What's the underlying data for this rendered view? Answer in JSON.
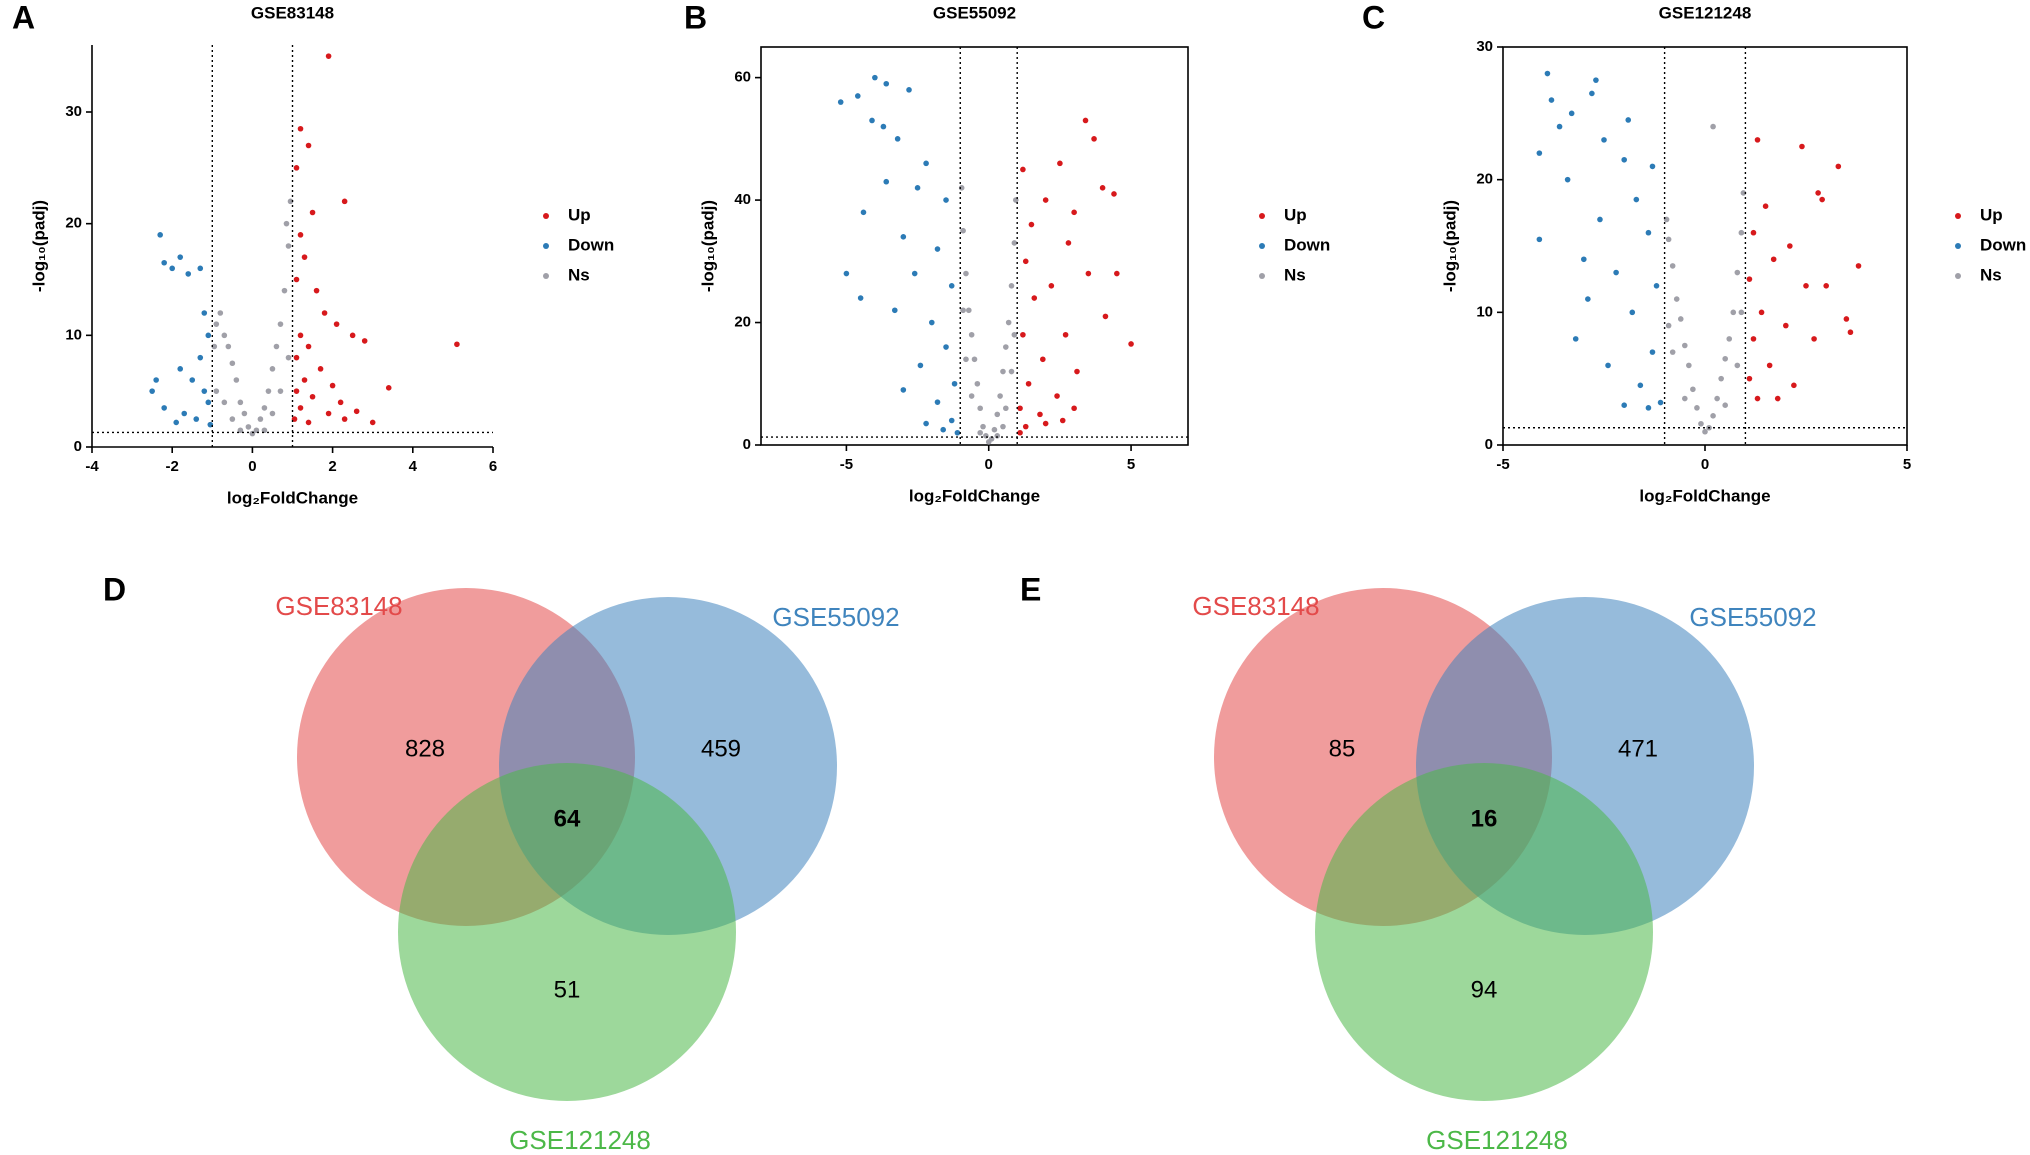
{
  "chart_data": [
    {
      "type": "scatter",
      "panel": "A",
      "title": "GSE83148",
      "xlabel": "log₂FoldChange",
      "ylabel": "-log₁₀(padj)",
      "xlim": [
        -4,
        6
      ],
      "xticks": [
        -4,
        -2,
        0,
        2,
        4,
        6
      ],
      "ylim": [
        0,
        36
      ],
      "yticks": [
        0,
        10,
        20,
        30
      ],
      "frame": false,
      "thresholds": {
        "x": [
          -1,
          1
        ],
        "y": 1.3
      },
      "series": [
        {
          "name": "Up",
          "color": "#d7191c",
          "x": [
            1.9,
            1.2,
            1.4,
            1.1,
            2.3,
            1.5,
            1.2,
            1.3,
            1.1,
            1.6,
            1.8,
            2.1,
            1.2,
            1.4,
            2.5,
            5.1,
            2.8,
            1.1,
            1.7,
            1.3,
            2.0,
            1.1,
            1.5,
            2.2,
            3.4,
            1.2,
            1.9,
            2.6,
            1.05,
            1.4,
            2.3,
            3.0
          ],
          "values": [
            35,
            28.5,
            27,
            25,
            22,
            21,
            19,
            17,
            15,
            14,
            12,
            11,
            10,
            9,
            10,
            9.2,
            9.5,
            8,
            7,
            6,
            5.5,
            5,
            4.5,
            4,
            5.3,
            3.5,
            3,
            3.2,
            2.5,
            2.2,
            2.5,
            2.2
          ]
        },
        {
          "name": "Down",
          "color": "#2c7bb6",
          "x": [
            -2.3,
            -2.2,
            -2.0,
            -1.8,
            -1.6,
            -1.3,
            -1.2,
            -1.1,
            -2.4,
            -1.8,
            -1.5,
            -1.3,
            -1.2,
            -2.2,
            -1.7,
            -1.4,
            -1.1,
            -2.5,
            -1.9,
            -1.05
          ],
          "values": [
            19,
            16.5,
            16,
            17,
            15.5,
            16,
            12,
            10,
            6,
            7,
            6,
            8,
            5,
            3.5,
            3,
            2.5,
            4,
            5,
            2.2,
            2.0
          ]
        },
        {
          "name": "Ns",
          "color": "#a0a0a8",
          "x": [
            0,
            0.1,
            -0.1,
            0.2,
            -0.2,
            0.3,
            -0.3,
            0.4,
            -0.4,
            0.5,
            -0.5,
            0.6,
            -0.6,
            0.7,
            -0.7,
            0.8,
            -0.8,
            0.9,
            -0.9,
            0.95,
            0.85,
            -0.95,
            0.7,
            -0.7,
            0.5,
            -0.5,
            0.9,
            -0.9,
            0.3,
            -0.3
          ],
          "values": [
            1.2,
            1.5,
            1.8,
            2.5,
            3,
            3.5,
            4,
            5,
            6,
            7,
            7.5,
            9,
            9,
            11,
            10,
            14,
            12,
            18,
            11,
            22,
            20,
            9,
            5,
            4,
            3,
            2.5,
            8,
            5,
            1.5,
            1.5
          ]
        }
      ]
    },
    {
      "type": "scatter",
      "panel": "B",
      "title": "GSE55092",
      "xlabel": "log₂FoldChange",
      "ylabel": "-log₁₀(padj)",
      "xlim": [
        -8,
        7
      ],
      "xticks": [
        -5,
        0,
        5
      ],
      "ylim": [
        0,
        65
      ],
      "yticks": [
        0,
        20,
        40,
        60
      ],
      "frame": true,
      "thresholds": {
        "x": [
          -1,
          1
        ],
        "y": 1.3
      },
      "series": [
        {
          "name": "Up",
          "color": "#d7191c",
          "x": [
            1.2,
            3.4,
            3.7,
            2.5,
            4.0,
            4.4,
            3.0,
            1.5,
            2.0,
            2.8,
            1.3,
            3.5,
            4.5,
            2.2,
            1.6,
            4.1,
            5.0,
            2.7,
            1.2,
            1.9,
            3.1,
            1.4,
            2.4,
            1.1,
            1.8,
            3.0,
            1.3,
            2.0,
            1.1,
            2.6
          ],
          "values": [
            45,
            53,
            50,
            46,
            42,
            41,
            38,
            36,
            40,
            33,
            30,
            28,
            28,
            26,
            24,
            21,
            16.5,
            18,
            18,
            14,
            12,
            10,
            8,
            6,
            5,
            6,
            3,
            3.5,
            2,
            4
          ]
        },
        {
          "name": "Down",
          "color": "#2c7bb6",
          "x": [
            -4.0,
            -3.6,
            -5.2,
            -4.6,
            -4.1,
            -3.7,
            -2.8,
            -3.2,
            -2.2,
            -3.6,
            -2.5,
            -1.5,
            -4.4,
            -3.0,
            -1.8,
            -2.6,
            -1.3,
            -4.5,
            -3.3,
            -2.0,
            -1.5,
            -2.4,
            -1.2,
            -3.0,
            -1.8,
            -1.3,
            -2.2,
            -1.1,
            -1.6,
            -5.0
          ],
          "values": [
            60,
            59,
            56,
            57,
            53,
            52,
            58,
            50,
            46,
            43,
            42,
            40,
            38,
            34,
            32,
            28,
            26,
            24,
            22,
            20,
            16,
            13,
            10,
            9,
            7,
            4,
            3.5,
            2,
            2.5,
            28
          ]
        },
        {
          "name": "Ns",
          "color": "#a0a0a8",
          "x": [
            0,
            0.1,
            -0.1,
            0.2,
            -0.2,
            0.3,
            -0.3,
            0.4,
            -0.4,
            0.5,
            -0.5,
            0.6,
            -0.6,
            0.7,
            -0.7,
            0.8,
            -0.8,
            0.9,
            -0.9,
            0.95,
            -0.95,
            0.8,
            -0.8,
            0.6,
            -0.6,
            0.9,
            -0.9,
            0.3,
            -0.3,
            0.5
          ],
          "values": [
            0.5,
            1,
            1.5,
            2.5,
            3,
            5,
            6,
            8,
            10,
            12,
            14,
            16,
            18,
            20,
            22,
            26,
            28,
            33,
            35,
            40,
            42,
            12,
            14,
            6,
            8,
            18,
            22,
            1.5,
            2,
            3
          ]
        }
      ]
    },
    {
      "type": "scatter",
      "panel": "C",
      "title": "GSE121248",
      "xlabel": "log₂FoldChange",
      "ylabel": "-log₁₀(padj)",
      "xlim": [
        -5,
        5
      ],
      "xticks": [
        -5,
        0,
        5
      ],
      "ylim": [
        0,
        30
      ],
      "yticks": [
        0,
        10,
        20,
        30
      ],
      "frame": true,
      "thresholds": {
        "x": [
          -1,
          1
        ],
        "y": 1.3
      },
      "series": [
        {
          "name": "Up",
          "color": "#d7191c",
          "x": [
            1.3,
            2.4,
            3.3,
            2.8,
            2.9,
            1.5,
            1.2,
            3.8,
            2.1,
            1.7,
            2.5,
            1.1,
            3.5,
            1.4,
            2.0,
            1.2,
            2.7,
            1.6,
            1.1,
            2.2,
            1.3,
            3.6,
            1.8,
            3.0
          ],
          "values": [
            23,
            22.5,
            21,
            19,
            18.5,
            18,
            16,
            13.5,
            15,
            14,
            12,
            12.5,
            9.5,
            10,
            9,
            8,
            8,
            6,
            5,
            4.5,
            3.5,
            8.5,
            3.5,
            12
          ]
        },
        {
          "name": "Down",
          "color": "#2c7bb6",
          "x": [
            -3.9,
            -2.7,
            -2.8,
            -3.8,
            -3.3,
            -4.1,
            -1.9,
            -3.6,
            -2.5,
            -1.3,
            -2.0,
            -3.4,
            -1.7,
            -4.1,
            -2.6,
            -1.4,
            -3.0,
            -2.2,
            -1.2,
            -2.9,
            -1.8,
            -3.2,
            -1.3,
            -2.4,
            -1.6,
            -1.1,
            -2.0,
            -1.4
          ],
          "values": [
            28,
            27.5,
            26.5,
            26,
            25,
            22,
            24.5,
            24,
            23,
            21,
            21.5,
            20,
            18.5,
            15.5,
            17,
            16,
            14,
            13,
            12,
            11,
            10,
            8,
            7,
            6,
            4.5,
            3.2,
            3,
            2.8
          ]
        },
        {
          "name": "Ns",
          "color": "#a0a0a8",
          "x": [
            0,
            0.1,
            -0.1,
            0.2,
            -0.2,
            0.3,
            -0.3,
            0.4,
            -0.4,
            0.5,
            -0.5,
            0.6,
            -0.6,
            0.7,
            -0.7,
            0.8,
            -0.8,
            0.9,
            -0.9,
            0.95,
            -0.95,
            0.8,
            -0.8,
            0.5,
            -0.5,
            0.2,
            0.9,
            -0.9
          ],
          "values": [
            1,
            1.3,
            1.6,
            2.2,
            2.8,
            3.5,
            4.2,
            5,
            6,
            6.5,
            7.5,
            8,
            9.5,
            10,
            11,
            13,
            13.5,
            16,
            15.5,
            19,
            17,
            6,
            7,
            3,
            3.5,
            24,
            10,
            9
          ]
        }
      ]
    },
    {
      "type": "venn",
      "panel": "D",
      "sets": [
        {
          "name": "GSE83148",
          "color": "#e34a4a"
        },
        {
          "name": "GSE55092",
          "color": "#3f84bd"
        },
        {
          "name": "GSE121248",
          "color": "#4cb848"
        }
      ],
      "regions": [
        {
          "sets": [
            0
          ],
          "value": 828
        },
        {
          "sets": [
            1
          ],
          "value": 459
        },
        {
          "sets": [
            0,
            1,
            2
          ],
          "value": 64
        },
        {
          "sets": [
            2
          ],
          "value": 51
        }
      ]
    },
    {
      "type": "venn",
      "panel": "E",
      "sets": [
        {
          "name": "GSE83148",
          "color": "#e34a4a"
        },
        {
          "name": "GSE55092",
          "color": "#3f84bd"
        },
        {
          "name": "GSE121248",
          "color": "#4cb848"
        }
      ],
      "regions": [
        {
          "sets": [
            0
          ],
          "value": 85
        },
        {
          "sets": [
            1
          ],
          "value": 471
        },
        {
          "sets": [
            0,
            1,
            2
          ],
          "value": 16
        },
        {
          "sets": [
            2
          ],
          "value": 94
        }
      ]
    }
  ]
}
